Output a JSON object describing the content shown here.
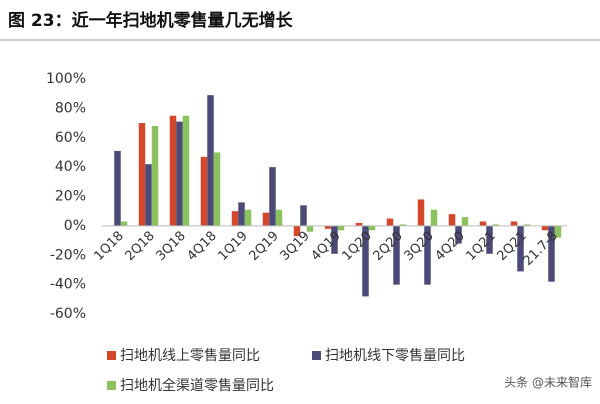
{
  "chart_data": {
    "type": "bar",
    "title": "图 23：近一年扫地机零售量几无增长",
    "categories": [
      "1Q18",
      "2Q18",
      "3Q18",
      "4Q18",
      "1Q19",
      "2Q19",
      "3Q19",
      "4Q19",
      "1Q20",
      "2Q20",
      "3Q20",
      "4Q20",
      "1Q21",
      "2Q21",
      "21.7-8"
    ],
    "series": [
      {
        "name": "扫地机线上零售量同比",
        "color": "#d4472a",
        "values": [
          0,
          70,
          75,
          47,
          10,
          9,
          -7,
          -2,
          2,
          5,
          18,
          8,
          3,
          3,
          -3
        ]
      },
      {
        "name": "扫地机线下零售量同比",
        "color": "#4b4a78",
        "values": [
          51,
          42,
          71,
          89,
          16,
          40,
          14,
          -19,
          -48,
          -40,
          -40,
          -12,
          -19,
          -31,
          -38
        ]
      },
      {
        "name": "扫地机全渠道零售量同比",
        "color": "#8cc25e",
        "values": [
          3,
          68,
          75,
          50,
          11,
          11,
          -4,
          -3,
          -3,
          1,
          11,
          6,
          1,
          1,
          -8
        ]
      }
    ],
    "ylim": [
      -60,
      100
    ],
    "yticks": [
      {
        "value": -60,
        "label": "-60%"
      },
      {
        "value": -40,
        "label": "-40%"
      },
      {
        "value": -20,
        "label": "-20%"
      },
      {
        "value": 0,
        "label": "0%"
      },
      {
        "value": 20,
        "label": "20%"
      },
      {
        "value": 40,
        "label": "40%"
      },
      {
        "value": 60,
        "label": "60%"
      },
      {
        "value": 80,
        "label": "80%"
      },
      {
        "value": 100,
        "label": "100%"
      }
    ],
    "watermark": "头条 @未来智库"
  }
}
